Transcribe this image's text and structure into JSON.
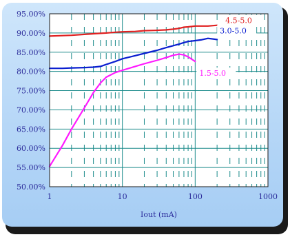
{
  "chart_data": {
    "type": "line",
    "title": "",
    "xlabel": "Iout (mA)",
    "ylabel": "",
    "x_scale": "log",
    "xlim": [
      1,
      1000
    ],
    "ylim": [
      0.5,
      0.95
    ],
    "x_ticks": [
      "1",
      "10",
      "100",
      "1000"
    ],
    "y_ticks": [
      "95.00%",
      "90.00%",
      "85.00%",
      "80.00%",
      "75.00%",
      "70.00%",
      "65.00%",
      "60.00%",
      "55.00%",
      "50.00%"
    ],
    "grid": true,
    "series": [
      {
        "name": "4.5-5.0",
        "color": "#e02020",
        "x": [
          1,
          2,
          4,
          6,
          8,
          10,
          15,
          20,
          30,
          40,
          50,
          60,
          70,
          80,
          100,
          150,
          200
        ],
        "y": [
          0.892,
          0.894,
          0.898,
          0.9,
          0.902,
          0.903,
          0.904,
          0.906,
          0.907,
          0.908,
          0.91,
          0.912,
          0.915,
          0.916,
          0.918,
          0.918,
          0.92
        ]
      },
      {
        "name": "3.0-5.0",
        "color": "#0a1ed0",
        "x": [
          1,
          1.5,
          2,
          3,
          4,
          5,
          6,
          8,
          10,
          15,
          20,
          30,
          40,
          50,
          60,
          70,
          80,
          100,
          120,
          150,
          200
        ],
        "y": [
          0.808,
          0.808,
          0.809,
          0.81,
          0.811,
          0.813,
          0.818,
          0.826,
          0.833,
          0.841,
          0.847,
          0.855,
          0.862,
          0.867,
          0.871,
          0.875,
          0.878,
          0.88,
          0.882,
          0.886,
          0.883
        ]
      },
      {
        "name": "1.5-5.0",
        "color": "#ff19ff",
        "x": [
          1,
          1.5,
          2,
          3,
          4,
          5,
          6,
          8,
          10,
          15,
          20,
          30,
          40,
          50,
          60,
          70,
          80,
          100
        ],
        "y": [
          0.553,
          0.607,
          0.65,
          0.705,
          0.745,
          0.77,
          0.785,
          0.797,
          0.803,
          0.813,
          0.82,
          0.829,
          0.836,
          0.842,
          0.845,
          0.843,
          0.838,
          0.826
        ]
      }
    ]
  }
}
